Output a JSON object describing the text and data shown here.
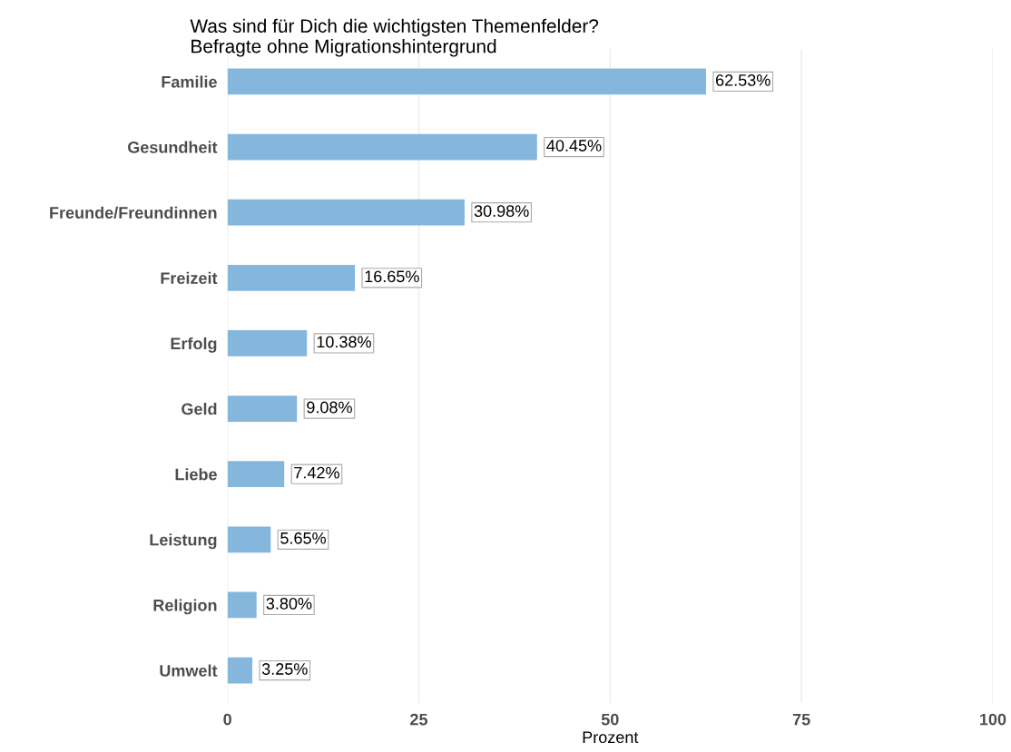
{
  "chart_data": {
    "type": "bar",
    "orientation": "horizontal",
    "title": "Was sind für Dich die wichtigsten Themenfelder?",
    "subtitle": "Befragte ohne Migrationshintergrund",
    "xlabel": "Prozent",
    "categories": [
      "Familie",
      "Gesundheit",
      "Freunde/Freundinnen",
      "Freizeit",
      "Erfolg",
      "Geld",
      "Liebe",
      "Leistung",
      "Religion",
      "Umwelt"
    ],
    "values": [
      62.53,
      40.45,
      30.98,
      16.65,
      10.38,
      9.08,
      7.42,
      5.65,
      3.8,
      3.25
    ],
    "value_labels": [
      "62.53%",
      "40.45%",
      "30.98%",
      "16.65%",
      "10.38%",
      "9.08%",
      "7.42%",
      "5.65%",
      "3.80%",
      "3.25%"
    ],
    "color": "#85b6dc",
    "xlim": [
      0,
      100
    ],
    "xticks": [
      0,
      25,
      50,
      75,
      100
    ],
    "grid": "x",
    "legend": false
  }
}
